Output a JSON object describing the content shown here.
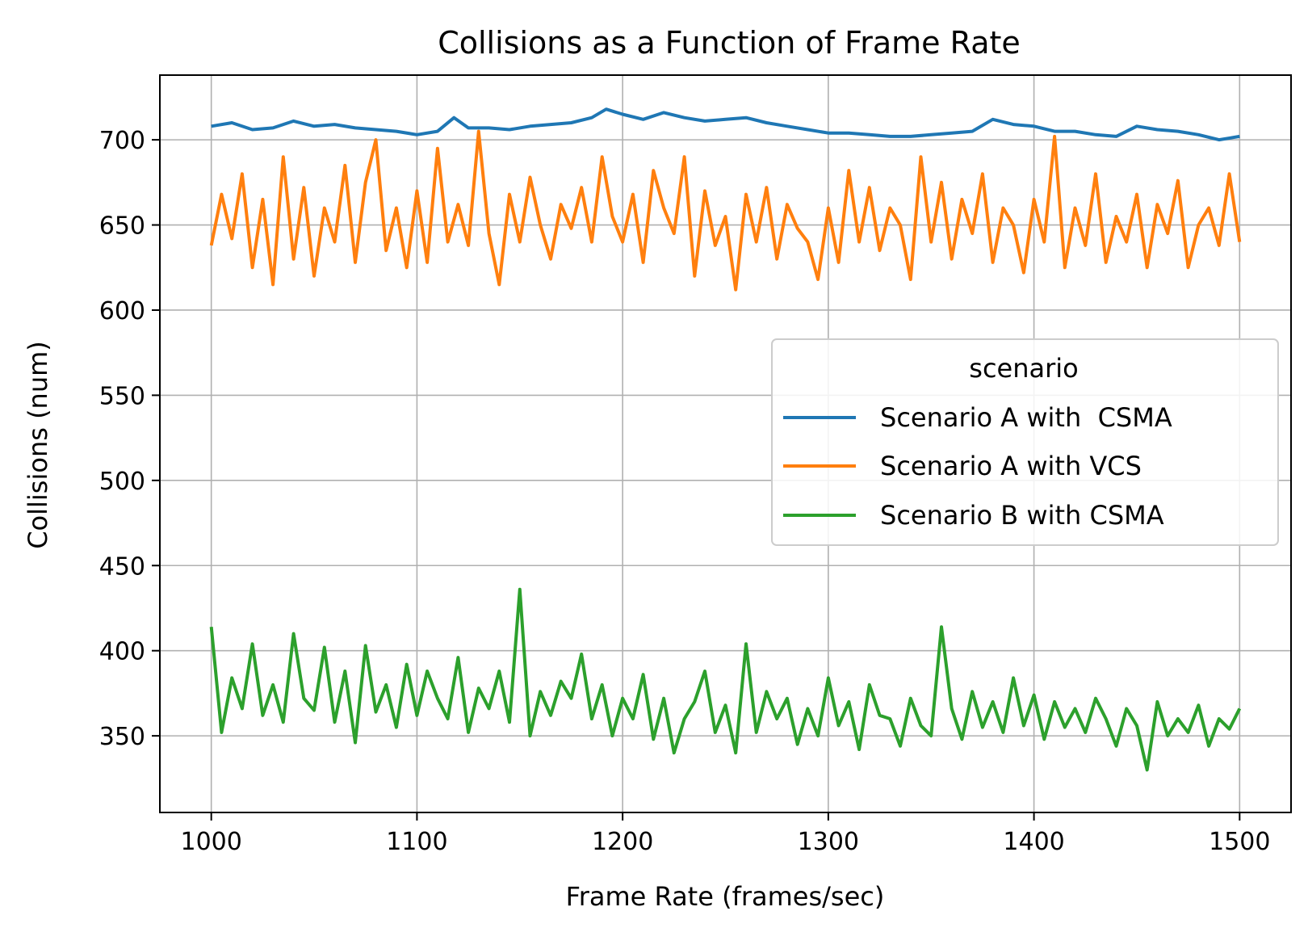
{
  "chart_data": {
    "type": "line",
    "title": "Collisions as a Function of Frame Rate",
    "xlabel": "Frame Rate (frames/sec)",
    "ylabel": "Collisions (num)",
    "xlim": [
      975,
      1525
    ],
    "ylim": [
      305,
      738
    ],
    "xticks": [
      1000,
      1100,
      1200,
      1300,
      1400,
      1500
    ],
    "yticks": [
      350,
      400,
      450,
      500,
      550,
      600,
      650,
      700
    ],
    "grid": true,
    "legend": {
      "title": "scenario",
      "placement": "center-right"
    },
    "series": [
      {
        "name": "Scenario A with  CSMA",
        "color": "#1f77b4",
        "x": [
          1000,
          1010,
          1020,
          1030,
          1040,
          1050,
          1060,
          1070,
          1080,
          1090,
          1100,
          1110,
          1118,
          1125,
          1135,
          1145,
          1155,
          1165,
          1175,
          1185,
          1192,
          1200,
          1210,
          1220,
          1230,
          1240,
          1250,
          1260,
          1270,
          1280,
          1290,
          1300,
          1310,
          1320,
          1330,
          1340,
          1350,
          1360,
          1370,
          1380,
          1390,
          1400,
          1410,
          1420,
          1430,
          1440,
          1450,
          1460,
          1470,
          1480,
          1490,
          1500
        ],
        "values": [
          708,
          710,
          706,
          707,
          711,
          708,
          709,
          707,
          706,
          705,
          703,
          705,
          713,
          707,
          707,
          706,
          708,
          709,
          710,
          713,
          718,
          715,
          712,
          716,
          713,
          711,
          712,
          713,
          710,
          708,
          706,
          704,
          704,
          703,
          702,
          702,
          703,
          704,
          705,
          712,
          709,
          708,
          705,
          705,
          703,
          702,
          708,
          706,
          705,
          703,
          700,
          702
        ]
      },
      {
        "name": "Scenario A with VCS",
        "color": "#ff7f0e",
        "x": [
          1000,
          1005,
          1010,
          1015,
          1020,
          1025,
          1030,
          1035,
          1040,
          1045,
          1050,
          1055,
          1060,
          1065,
          1070,
          1075,
          1080,
          1085,
          1090,
          1095,
          1100,
          1105,
          1110,
          1115,
          1120,
          1125,
          1130,
          1135,
          1140,
          1145,
          1150,
          1155,
          1160,
          1165,
          1170,
          1175,
          1180,
          1185,
          1190,
          1195,
          1200,
          1205,
          1210,
          1215,
          1220,
          1225,
          1230,
          1235,
          1240,
          1245,
          1250,
          1255,
          1260,
          1265,
          1270,
          1275,
          1280,
          1285,
          1290,
          1295,
          1300,
          1305,
          1310,
          1315,
          1320,
          1325,
          1330,
          1335,
          1340,
          1345,
          1350,
          1355,
          1360,
          1365,
          1370,
          1375,
          1380,
          1385,
          1390,
          1395,
          1400,
          1405,
          1410,
          1415,
          1420,
          1425,
          1430,
          1435,
          1440,
          1445,
          1450,
          1455,
          1460,
          1465,
          1470,
          1475,
          1480,
          1485,
          1490,
          1495,
          1500
        ],
        "values": [
          638,
          668,
          642,
          680,
          625,
          665,
          615,
          690,
          630,
          672,
          620,
          660,
          640,
          685,
          628,
          675,
          700,
          635,
          660,
          625,
          670,
          628,
          695,
          640,
          662,
          638,
          705,
          645,
          615,
          668,
          640,
          678,
          650,
          630,
          662,
          648,
          672,
          640,
          690,
          655,
          640,
          668,
          628,
          682,
          660,
          645,
          690,
          620,
          670,
          638,
          655,
          612,
          668,
          640,
          672,
          630,
          662,
          648,
          640,
          618,
          660,
          628,
          682,
          640,
          672,
          635,
          660,
          650,
          618,
          690,
          640,
          675,
          630,
          665,
          645,
          680,
          628,
          660,
          650,
          622,
          665,
          640,
          702,
          625,
          660,
          638,
          680,
          628,
          655,
          640,
          668,
          625,
          662,
          645,
          676,
          625,
          650,
          660,
          638,
          680,
          640
        ]
      },
      {
        "name": "Scenario B with CSMA",
        "color": "#2ca02c",
        "x": [
          1000,
          1005,
          1010,
          1015,
          1020,
          1025,
          1030,
          1035,
          1040,
          1045,
          1050,
          1055,
          1060,
          1065,
          1070,
          1075,
          1080,
          1085,
          1090,
          1095,
          1100,
          1105,
          1110,
          1115,
          1120,
          1125,
          1130,
          1135,
          1140,
          1145,
          1150,
          1155,
          1160,
          1165,
          1170,
          1175,
          1180,
          1185,
          1190,
          1195,
          1200,
          1205,
          1210,
          1215,
          1220,
          1225,
          1230,
          1235,
          1240,
          1245,
          1250,
          1255,
          1260,
          1265,
          1270,
          1275,
          1280,
          1285,
          1290,
          1295,
          1300,
          1305,
          1310,
          1315,
          1320,
          1325,
          1330,
          1335,
          1340,
          1345,
          1350,
          1355,
          1360,
          1365,
          1370,
          1375,
          1380,
          1385,
          1390,
          1395,
          1400,
          1405,
          1410,
          1415,
          1420,
          1425,
          1430,
          1435,
          1440,
          1445,
          1450,
          1455,
          1460,
          1465,
          1470,
          1475,
          1480,
          1485,
          1490,
          1495,
          1500
        ],
        "values": [
          414,
          352,
          384,
          366,
          404,
          362,
          380,
          358,
          410,
          372,
          365,
          402,
          358,
          388,
          346,
          403,
          364,
          380,
          355,
          392,
          362,
          388,
          372,
          360,
          396,
          352,
          378,
          366,
          388,
          358,
          436,
          350,
          376,
          362,
          382,
          372,
          398,
          360,
          380,
          350,
          372,
          360,
          386,
          348,
          372,
          340,
          360,
          370,
          388,
          352,
          368,
          340,
          404,
          352,
          376,
          360,
          372,
          345,
          366,
          350,
          384,
          356,
          370,
          342,
          380,
          362,
          360,
          344,
          372,
          356,
          350,
          414,
          366,
          348,
          376,
          355,
          370,
          352,
          384,
          356,
          374,
          348,
          370,
          355,
          366,
          352,
          372,
          360,
          344,
          366,
          356,
          330,
          370,
          350,
          360,
          352,
          368,
          344,
          360,
          354,
          366
        ]
      }
    ]
  }
}
